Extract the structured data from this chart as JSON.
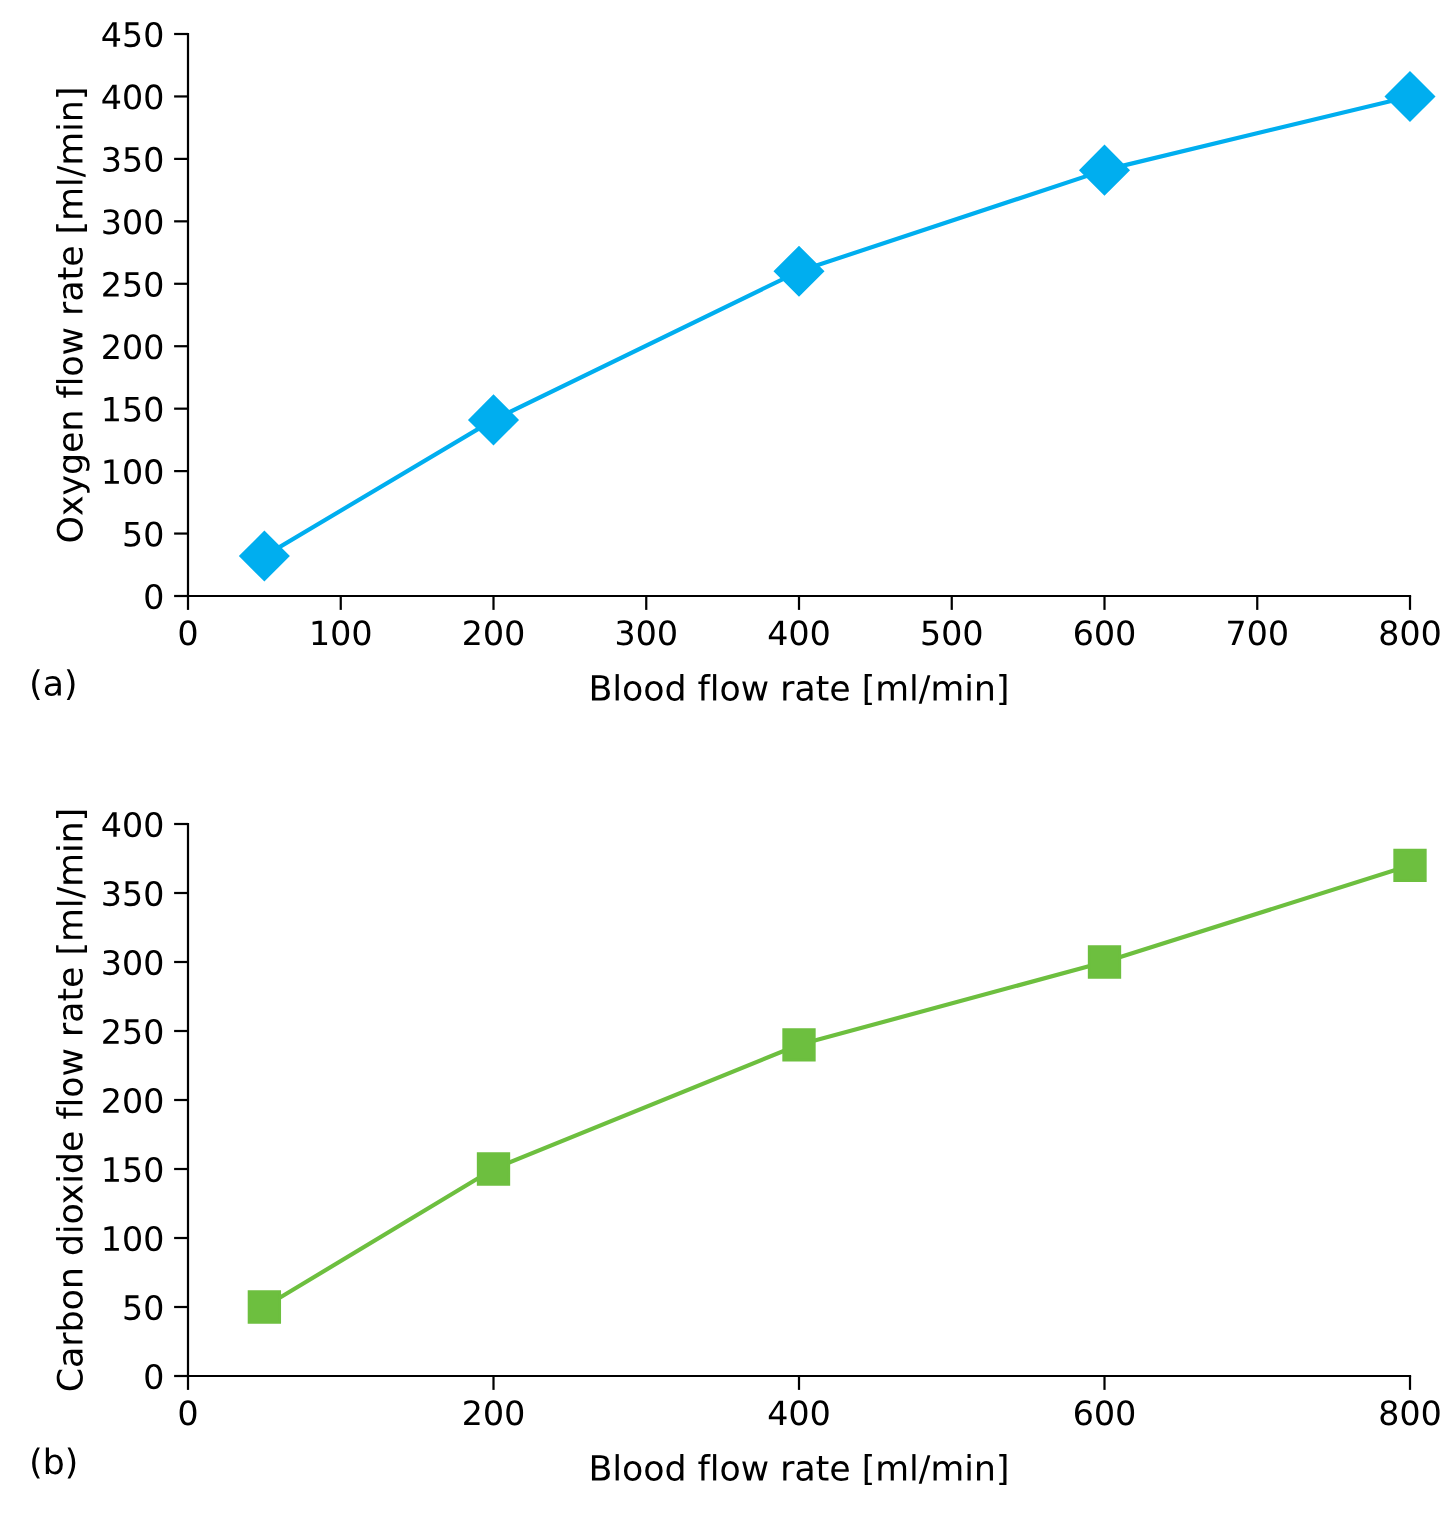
{
  "chart_data": [
    {
      "type": "line",
      "xlabel": "Blood flow rate [ml/min]",
      "ylabel": "Oxygen flow rate [ml/min]",
      "annotations": [
        "(a)"
      ],
      "x": [
        50,
        200,
        400,
        600,
        800
      ],
      "series": [
        {
          "color": "#00aeef",
          "values": [
            32,
            141,
            260,
            341,
            400
          ]
        }
      ],
      "xlim": [
        0,
        800
      ],
      "xticks": [
        0,
        100,
        200,
        300,
        400,
        500,
        600,
        700,
        800
      ],
      "ylim": [
        0,
        450
      ],
      "yticks": [
        0,
        50,
        100,
        150,
        200,
        250,
        300,
        350,
        400,
        450
      ],
      "marker": "diamond",
      "line_style": "solid",
      "grid": false,
      "legend": false
    },
    {
      "type": "line",
      "xlabel": "Blood flow rate [ml/min]",
      "ylabel": "Carbon dioxide flow rate [ml/min]",
      "annotations": [
        "(b)"
      ],
      "x": [
        50,
        200,
        400,
        600,
        800
      ],
      "series": [
        {
          "color": "#6dbf3f",
          "values": [
            50,
            150,
            240,
            300,
            370
          ]
        }
      ],
      "xlim": [
        0,
        800
      ],
      "xticks": [
        0,
        200,
        400,
        600,
        800
      ],
      "ylim": [
        0,
        400
      ],
      "yticks": [
        0,
        50,
        100,
        150,
        200,
        250,
        300,
        350,
        400
      ],
      "marker": "square",
      "line_style": "solid",
      "grid": false,
      "legend": false
    }
  ]
}
